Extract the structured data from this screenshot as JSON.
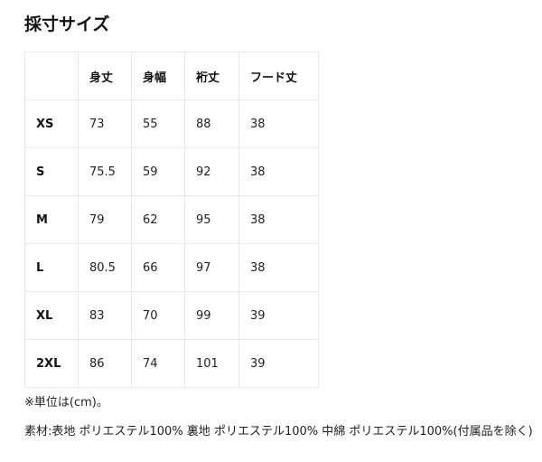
{
  "title": "採寸サイズ",
  "table": {
    "headers": [
      "",
      "身丈",
      "身幅",
      "裄丈",
      "フード丈"
    ],
    "rows": [
      [
        "XS",
        "73",
        "55",
        "88",
        "38"
      ],
      [
        "S",
        "75.5",
        "59",
        "92",
        "38"
      ],
      [
        "M",
        "79",
        "62",
        "95",
        "38"
      ],
      [
        "L",
        "80.5",
        "66",
        "97",
        "38"
      ],
      [
        "XL",
        "83",
        "70",
        "99",
        "39"
      ],
      [
        "2XL",
        "86",
        "74",
        "101",
        "39"
      ]
    ]
  },
  "unit_note": "※単位は(cm)。",
  "material": "素材:表地 ポリエステル100% 裏地 ポリエステル100% 中綿 ポリエステル100%(付属品を除く)"
}
